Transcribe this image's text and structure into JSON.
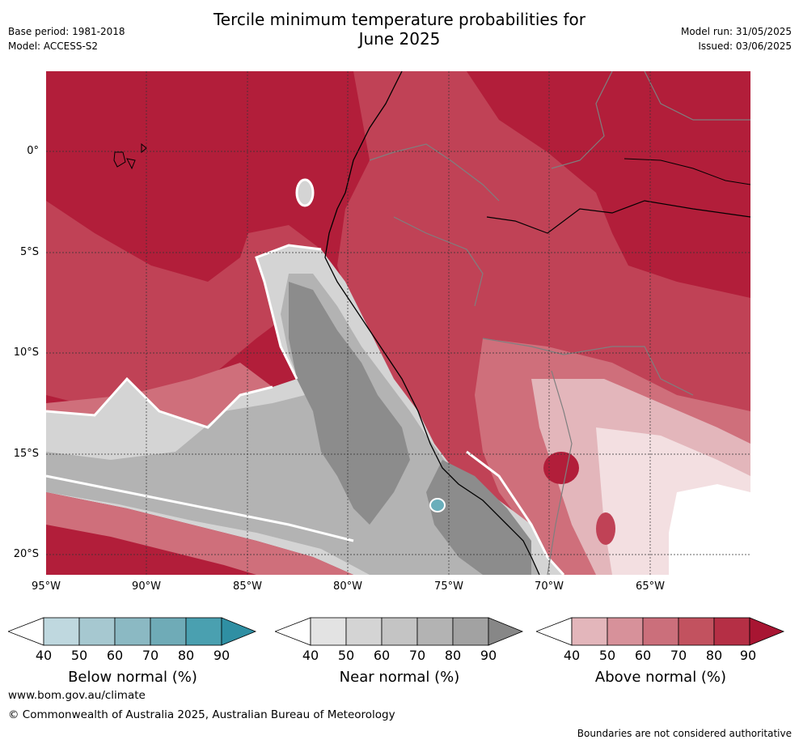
{
  "header": {
    "title_line1": "Tercile minimum temperature probabilities for",
    "title_line2": "June 2025",
    "base_period": "Base period: 1981-2018",
    "model": "Model: ACCESS-S2",
    "model_run": "Model run: 31/05/2025",
    "issued": "Issued: 03/06/2025"
  },
  "map": {
    "lat_labels": [
      "0°",
      "5°S",
      "10°S",
      "15°S",
      "20°S"
    ],
    "lon_labels": [
      "95°W",
      "90°W",
      "85°W",
      "80°W",
      "75°W",
      "70°W",
      "65°W"
    ],
    "dominant_category_pattern": "Above normal over most of ocean and land; Near normal band along coastal Peru/Chile ocean; small Below normal patches",
    "colors": {
      "above_max": "#b21e3a",
      "near_mid": "#a9a9a9",
      "below_spot": "#6aaebb",
      "land_border": "#7f7f7f",
      "coast": "#000000",
      "grid": "#444444"
    }
  },
  "colorbars": [
    {
      "name": "below",
      "title": "Below normal (%)",
      "ticks": [
        "40",
        "50",
        "60",
        "70",
        "80",
        "90"
      ],
      "colors": [
        "#ffffff",
        "#bfd8df",
        "#a6c8d0",
        "#8bb9c3",
        "#6fabb7",
        "#4aa0b0",
        "#2f8fa3"
      ]
    },
    {
      "name": "near",
      "title": "Near normal (%)",
      "ticks": [
        "40",
        "50",
        "60",
        "70",
        "80",
        "90"
      ],
      "colors": [
        "#ffffff",
        "#e3e3e3",
        "#d4d4d4",
        "#c4c4c4",
        "#b3b3b3",
        "#a2a2a2",
        "#878787"
      ]
    },
    {
      "name": "above",
      "title": "Above normal (%)",
      "ticks": [
        "40",
        "50",
        "60",
        "70",
        "80",
        "90"
      ],
      "colors": [
        "#ffffff",
        "#e3b6bb",
        "#d7919a",
        "#cb6f7b",
        "#c2525f",
        "#b52f45",
        "#a81532"
      ]
    }
  ],
  "footer": {
    "website": "www.bom.gov.au/climate",
    "copyright": "© Commonwealth of Australia 2025, Australian Bureau of Meteorology",
    "disclaimer": "Boundaries are not considered authoritative"
  }
}
